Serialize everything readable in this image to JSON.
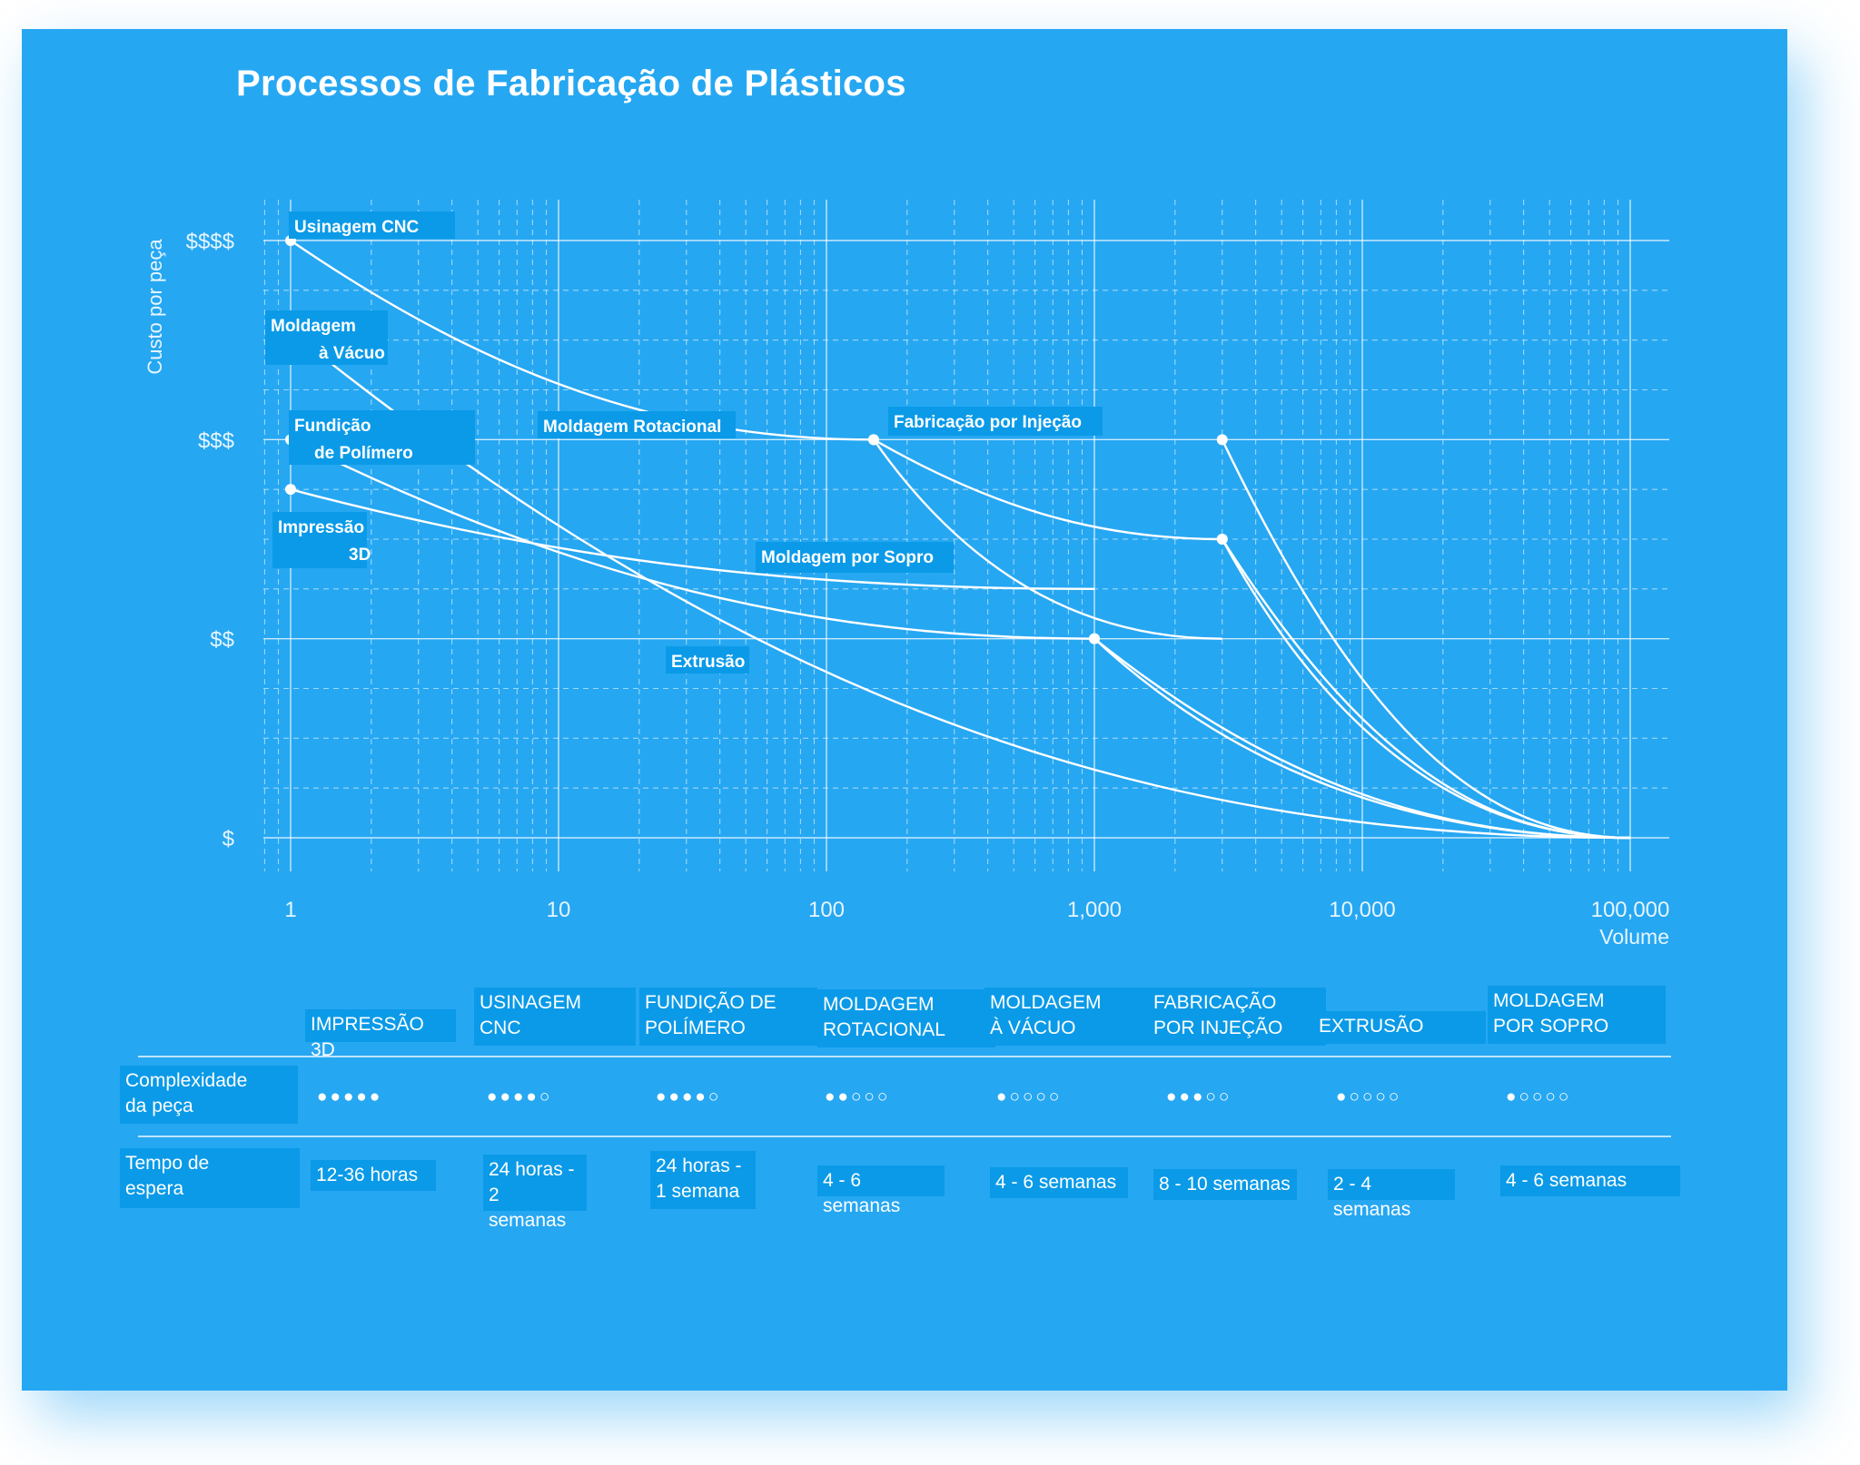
{
  "chart_data": {
    "type": "line",
    "title": "Processos de Fabricação de Plásticos",
    "ylabel": "Custo por peça",
    "xlabel": "Volume",
    "x_scale": "log",
    "xlim": [
      0.6,
      130000
    ],
    "ylim": [
      1,
      4
    ],
    "x_ticks": [
      1,
      10,
      100,
      1000,
      10000,
      100000
    ],
    "x_tick_labels": [
      "1",
      "10",
      "100",
      "1,000",
      "10,000",
      "100,000"
    ],
    "y_ticks": [
      1,
      2,
      3,
      4
    ],
    "y_tick_labels": [
      "$",
      "$$",
      "$$$",
      "$$$$"
    ],
    "grid": true,
    "series": [
      {
        "name": "Usinagem CNC",
        "start": [
          1,
          4.0
        ],
        "through": [
          150,
          3.0
        ],
        "end": [
          3000,
          2.0
        ]
      },
      {
        "name": "Moldagem à Vácuo",
        "start": [
          1.1,
          3.5
        ],
        "end": [
          100000,
          1.0
        ]
      },
      {
        "name": "Fundição de Polímero",
        "start": [
          1,
          3.0
        ],
        "through": [
          1000,
          2.0
        ],
        "end": [
          100000,
          1.0
        ]
      },
      {
        "name": "Impressão 3D",
        "start": [
          1,
          2.75
        ],
        "end": [
          1000,
          2.25
        ]
      },
      {
        "name": "Moldagem Rotacional",
        "start": [
          150,
          3.0
        ],
        "through": [
          3000,
          2.5
        ],
        "end": [
          100000,
          1.0
        ]
      },
      {
        "name": "Fabricação por Injeção",
        "start": [
          3000,
          3.0
        ],
        "end": [
          100000,
          1.0
        ]
      },
      {
        "name": "Moldagem por Sopro",
        "start": [
          3000,
          2.5
        ],
        "end": [
          100000,
          1.0
        ]
      },
      {
        "name": "Extrusão",
        "start": [
          1000,
          2.0
        ],
        "end": [
          100000,
          1.0
        ]
      }
    ]
  },
  "table": {
    "row_labels": [
      "Complexidade\nda peça",
      "Tempo de\nespera"
    ],
    "columns": [
      {
        "header": "IMPRESSÃO 3D",
        "complexity": 5,
        "lead_time": "12-36 horas"
      },
      {
        "header": "USINAGEM\nCNC",
        "complexity": 4,
        "lead_time": "24 horas -\n2 semanas"
      },
      {
        "header": "FUNDIÇÃO DE\nPOLÍMERO",
        "complexity": 4,
        "lead_time": "24 horas -\n1 semana"
      },
      {
        "header": "MOLDAGEM\nROTACIONAL",
        "complexity": 2,
        "lead_time": "4 - 6 semanas"
      },
      {
        "header": "MOLDAGEM\nÀ VÁCUO",
        "complexity": 1,
        "lead_time": "4 - 6 semanas"
      },
      {
        "header": "FABRICAÇÃO\nPOR INJEÇÃO",
        "complexity": 3,
        "lead_time": "8 - 10 semanas"
      },
      {
        "header": "EXTRUSÃO",
        "complexity": 1,
        "lead_time": "2 - 4 semanas"
      },
      {
        "header": "MOLDAGEM\nPOR SOPRO",
        "complexity": 1,
        "lead_time": "4 - 6 semanas"
      }
    ],
    "max_dots": 5
  },
  "point_labels": {
    "usinagem_cnc": "Usinagem CNC",
    "moldagem_vacuo": [
      "Moldagem",
      "à Vácuo"
    ],
    "fundicao": [
      "Fundição",
      "de Polímero"
    ],
    "impressao": [
      "Impressão",
      "3D"
    ],
    "rotacional": "Moldagem Rotacional",
    "injecao": "Fabricação por Injeção",
    "sopro": "Moldagem por Sopro",
    "extrusao": "Extrusão"
  }
}
